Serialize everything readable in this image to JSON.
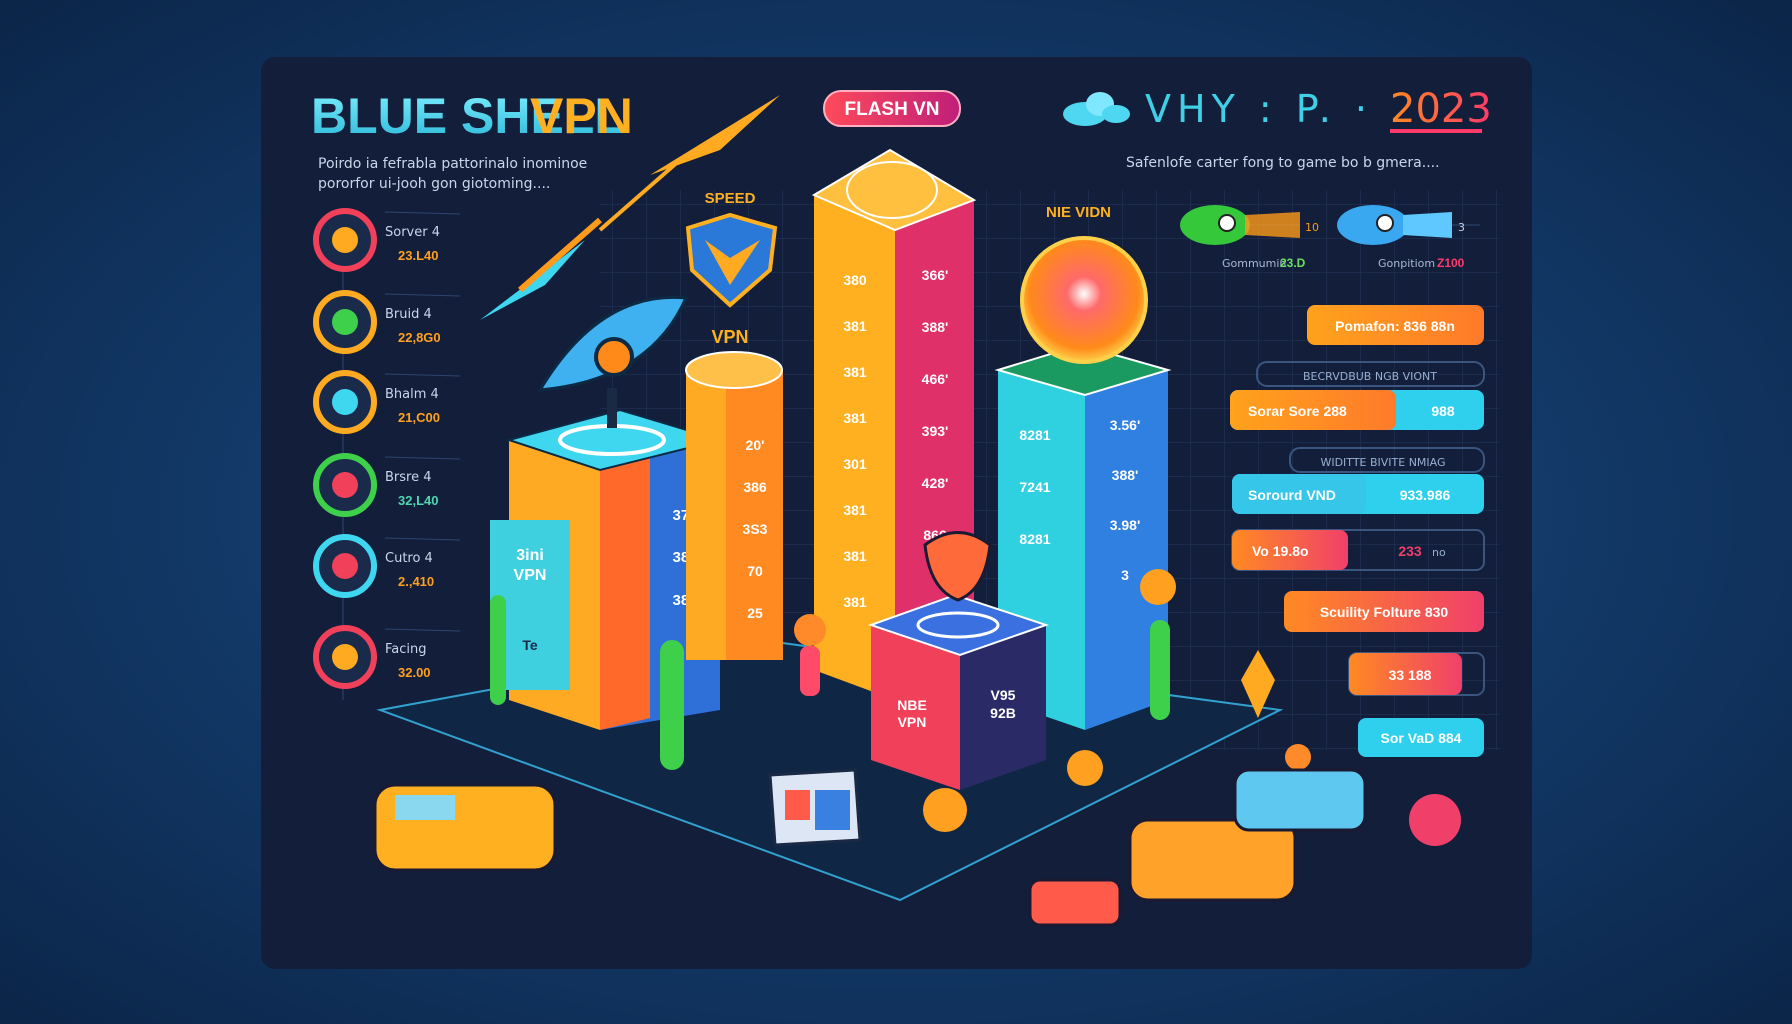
{
  "header": {
    "title_main": "BLUE SHELL",
    "title_accent": "VPN",
    "subtitle_line1": "Poirdo ia fefrabla pattorinalo inominoe",
    "subtitle_line2": "pororfor ui-jooh gon giotoming....",
    "badge": "FLASH VN",
    "top_right_text": "VHY : P. ·",
    "year": "2023",
    "right_subtitle": "Safenlofe carter fong to game bo b gmera....",
    "colors": {
      "title": "#5fe0f0",
      "accent": "#ffb020",
      "badge": "#e0306f",
      "year": "#ff5a4a"
    }
  },
  "fish_stats": [
    {
      "icon": "green-rocket-fish-icon",
      "tag": "10",
      "label": "Gommumin",
      "value": "23.D"
    },
    {
      "icon": "blue-rocket-fish-icon",
      "tag": "3",
      "label": "Gonpitiom",
      "value": "Z100"
    }
  ],
  "left_list": [
    {
      "icon": "red-circle-icon",
      "label": "Sorver 4",
      "value": "23.L40"
    },
    {
      "icon": "yellow-gauge-icon",
      "label": "Bruid 4",
      "value": "22,8G0"
    },
    {
      "icon": "swirl-icon",
      "label": "Bhalm 4",
      "value": "21,C00"
    },
    {
      "icon": "puzzle-globe-icon",
      "label": "Brsre 4",
      "value": "32,L40"
    },
    {
      "icon": "shield-icon",
      "label": "Cutro 4",
      "value": "2.,410"
    },
    {
      "icon": "tools-icon",
      "label": "Facing",
      "value": "32.00"
    }
  ],
  "illustration": {
    "speed_label": "SPEED",
    "vpn_label": "VPN",
    "nie_label": "NIE VIDN",
    "tower1_face": [
      "3ini",
      "VPN",
      "Te"
    ],
    "tower1_side": [
      "370",
      "386",
      "383"
    ],
    "cylinder_values": [
      "20'",
      "386",
      "3S3",
      "70",
      "25"
    ],
    "tall_front": [
      "380",
      "381",
      "381",
      "381",
      "301",
      "381",
      "381",
      "381"
    ],
    "tall_side": [
      "366'",
      "388'",
      "466'",
      "393'",
      "428'",
      "866"
    ],
    "blue_front": [
      "8281",
      "7241",
      "8281"
    ],
    "blue_side": [
      "3.56'",
      "388'",
      "3.98'",
      "3"
    ],
    "short_front": [
      "NBE",
      "VPN"
    ],
    "short_side": [
      "V95",
      "92B"
    ]
  },
  "right_panel": {
    "bar1": "Pomafon: 836 88n",
    "heading1": "BECRVDBUB NGB VIONT",
    "bar2_left": "Sorar Sore 288",
    "bar2_right": "988",
    "heading2": "WIDITTE BIVITE NMIAG",
    "bar3_left": "Sorourd VND",
    "bar3_right": "933.986",
    "bar4_left": "Vo 19.8o",
    "bar4_right": "233",
    "bar4_unit": "no",
    "bar5": "Scuility Folture 830",
    "bar6": "33 188",
    "bar7": "Sor VaD 884",
    "colors": {
      "orange": "#ff9a1f",
      "cyan": "#2fd0ee",
      "pink": "#f0406a"
    }
  }
}
